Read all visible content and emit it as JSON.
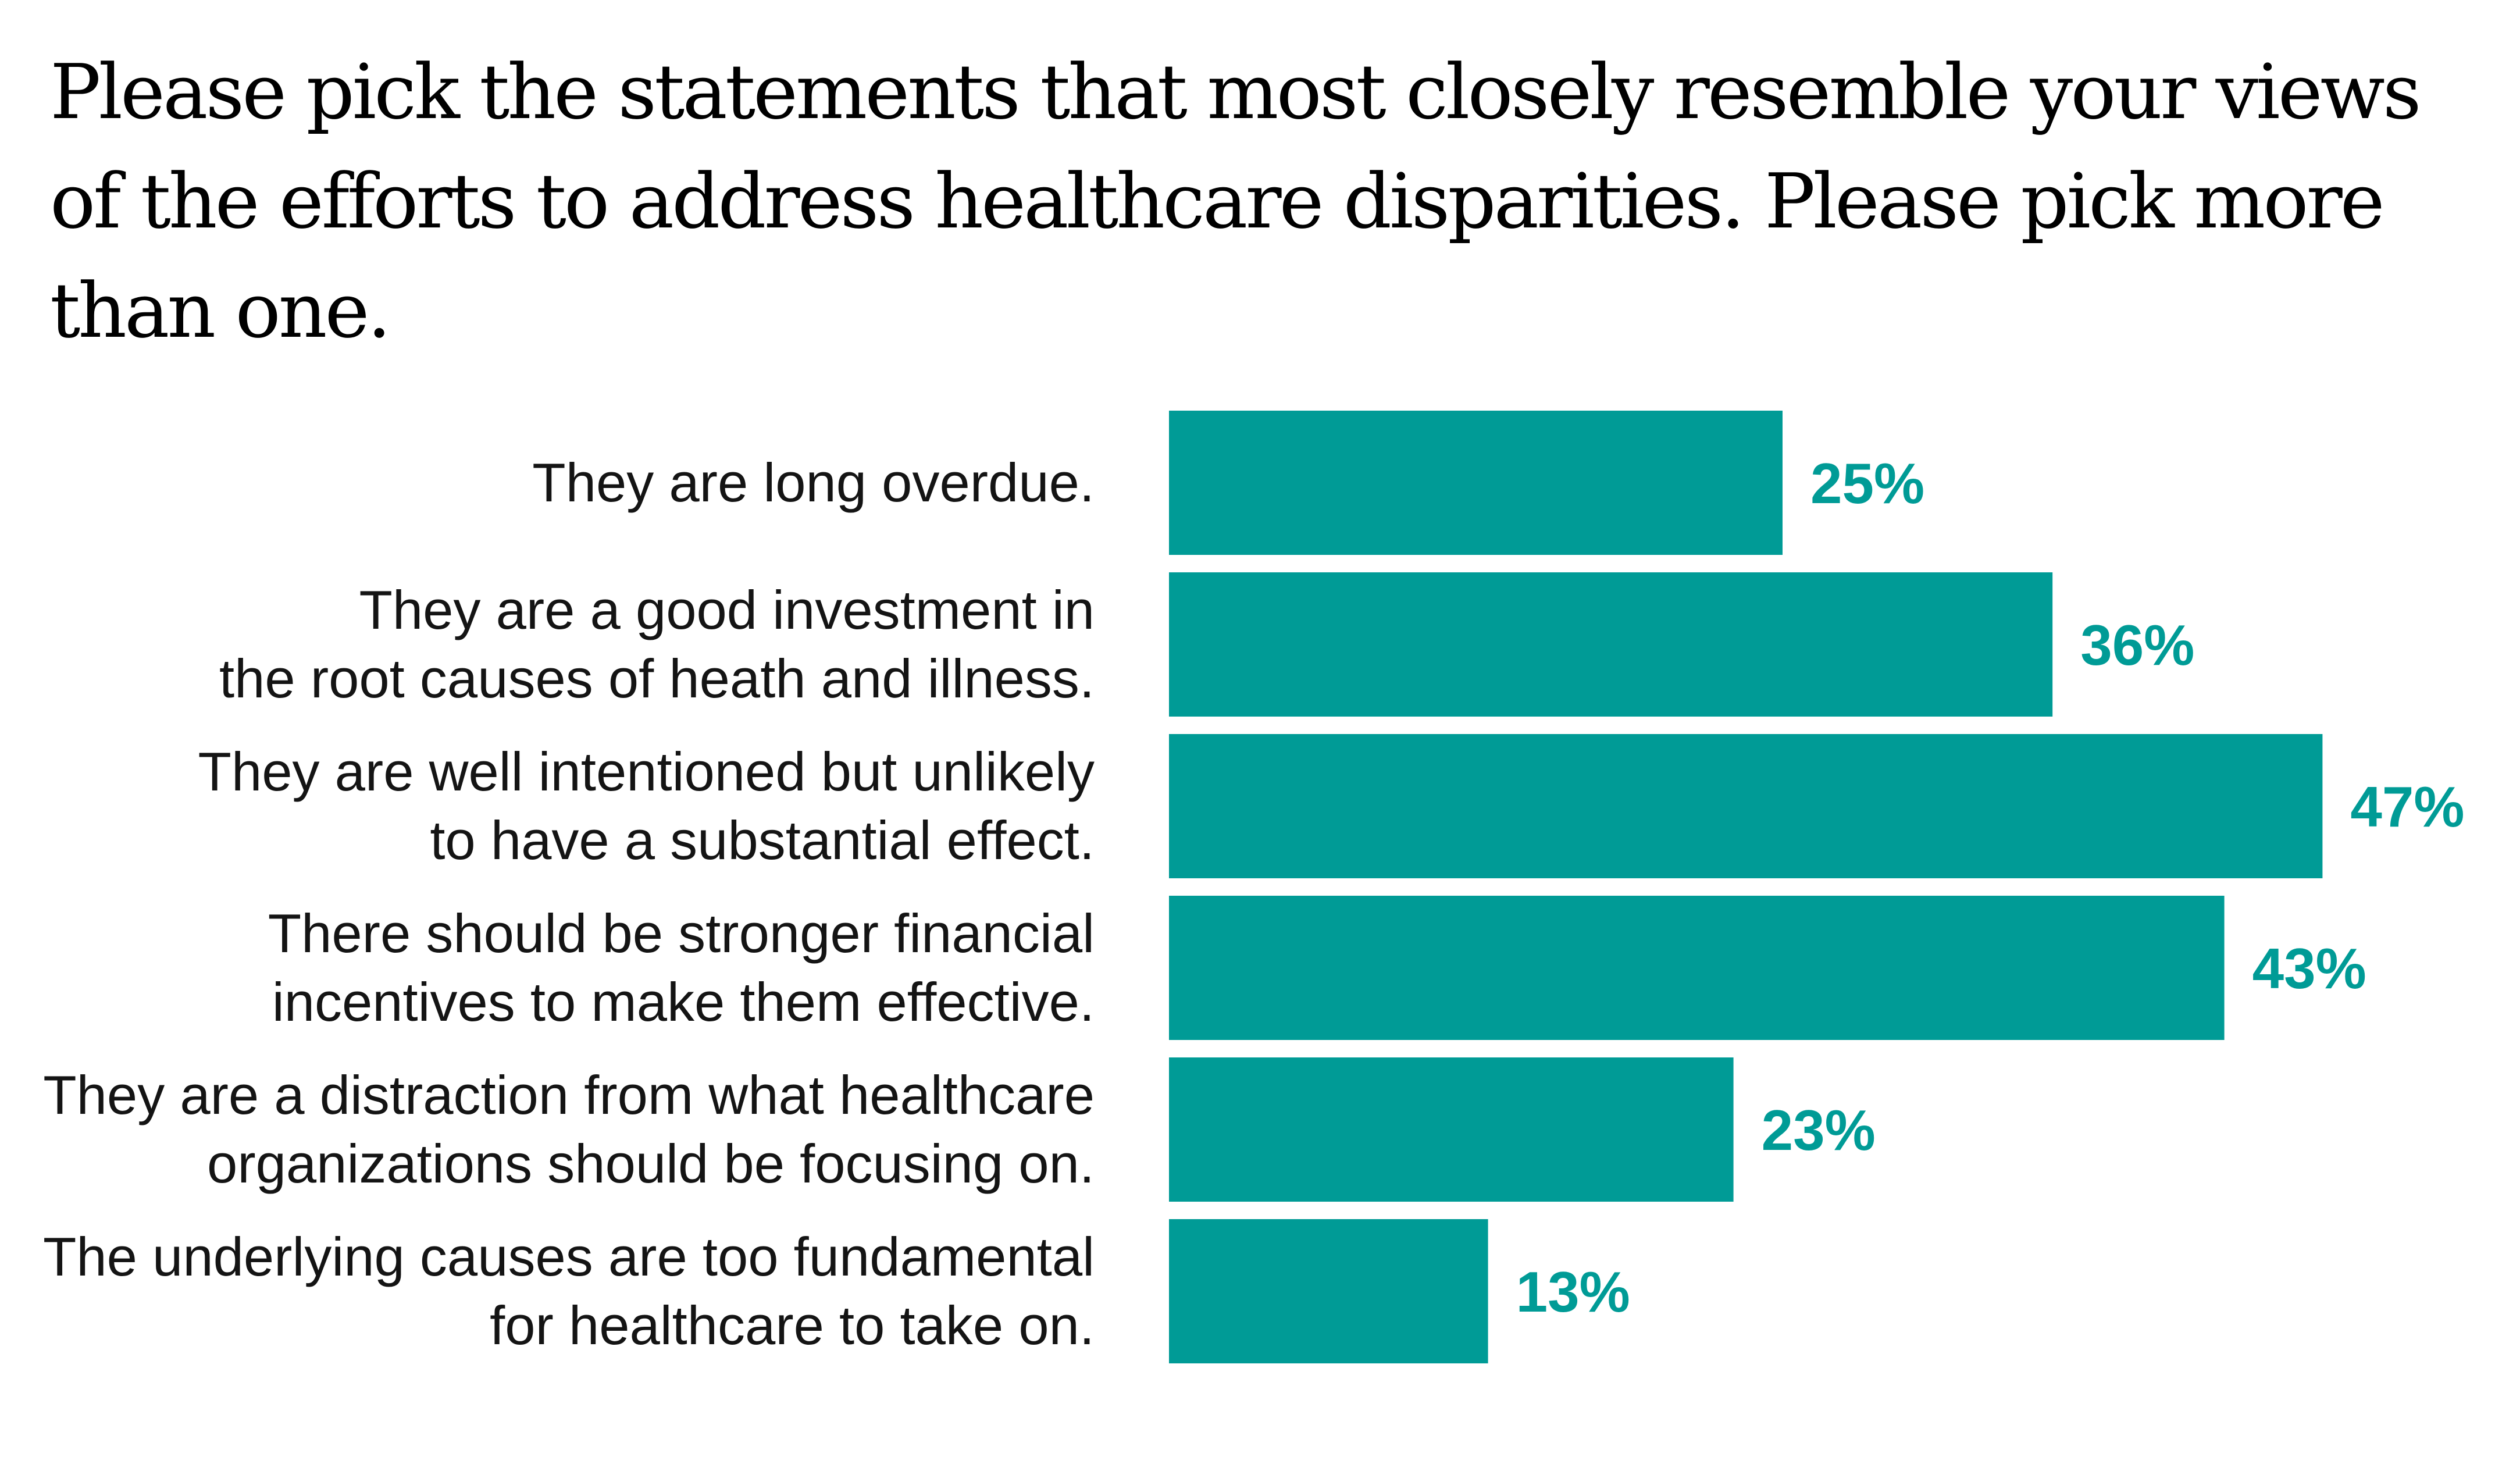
{
  "chart_data": {
    "type": "bar",
    "orientation": "horizontal",
    "title": "Please pick the statements that most closely resemble your views of the efforts to address healthcare disparities. Please pick more than one.",
    "categories": [
      [
        "They are long overdue."
      ],
      [
        "They are a good investment in",
        "the root causes of heath and illness."
      ],
      [
        "They are well intentioned but unlikely",
        "to have a substantial effect."
      ],
      [
        "There should be stronger financial",
        "incentives to make them effective."
      ],
      [
        "They are a distraction from what healthcare",
        "organizations should be focusing on."
      ],
      [
        "The underlying causes are too fundamental",
        "for healthcare to take on."
      ]
    ],
    "values": [
      25,
      36,
      47,
      43,
      23,
      13
    ],
    "value_labels": [
      "25%",
      "36%",
      "47%",
      "43%",
      "23%",
      "13%"
    ],
    "xlim": [
      0,
      47
    ],
    "xlabel": "",
    "ylabel": "",
    "grid": false,
    "legend": "none",
    "bar_color": "#009b96",
    "label_color": "#009b96"
  }
}
